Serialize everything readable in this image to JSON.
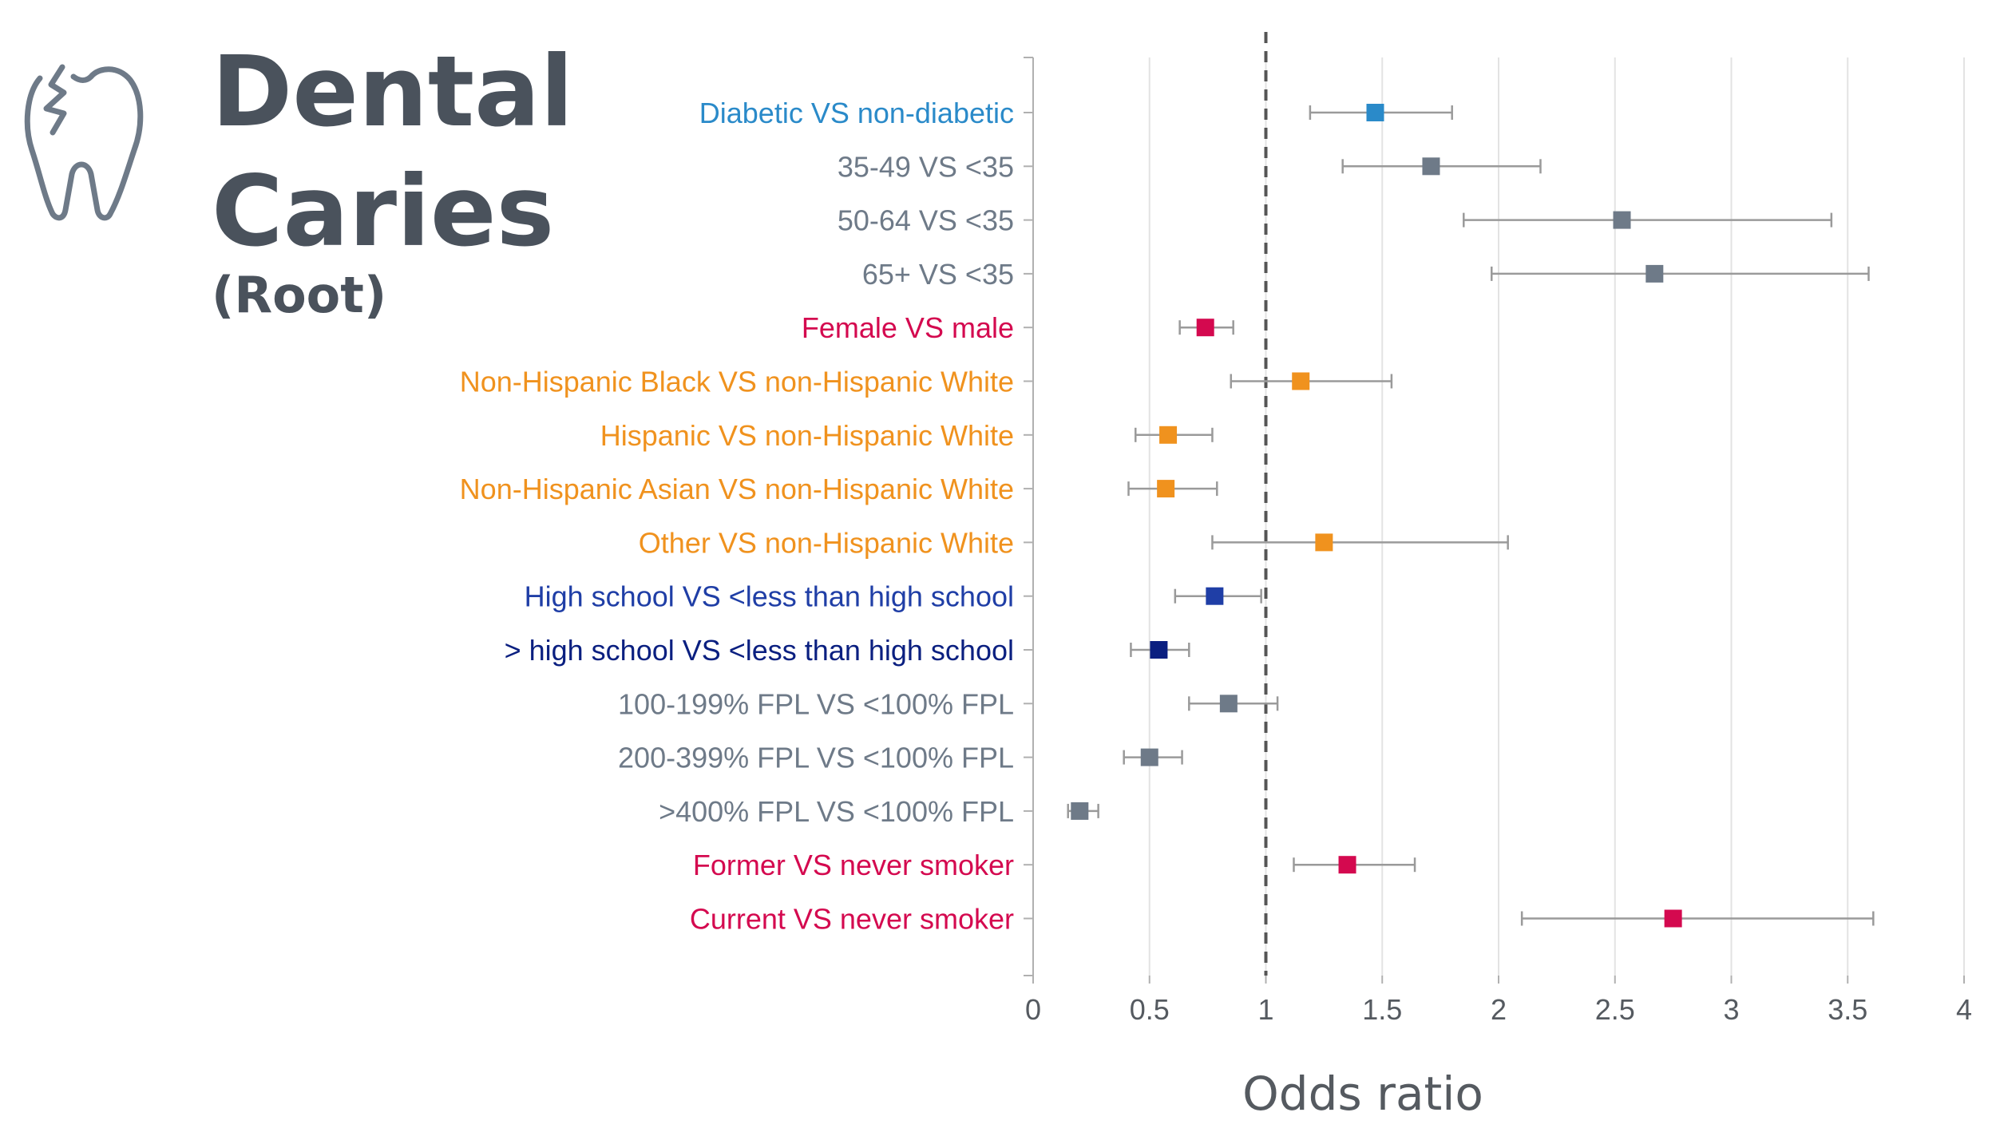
{
  "title": {
    "line1": "Dental",
    "line2": "Caries",
    "line3": "(Root)"
  },
  "icons": {
    "tooth": "broken-tooth-icon"
  },
  "colors": {
    "diabetes": "#2a8ac9",
    "gray": "#6e7a88",
    "sex_smoking": "#d4094f",
    "race": "#f0921e",
    "edu_highschool": "#1f3ea6",
    "edu_beyond": "#0a1f80",
    "reference_line": "#555555",
    "whisker": "#9a9a9a",
    "axis_text": "#555a60",
    "grid": "#e3e3e3"
  },
  "chart_data": {
    "type": "forest",
    "xlabel": "Odds ratio",
    "xlim": [
      0,
      4
    ],
    "xticks": [
      0,
      0.5,
      1,
      1.5,
      2,
      2.5,
      3,
      3.5,
      4
    ],
    "xtick_labels": [
      "0",
      "0.5",
      "1",
      "1.5",
      "2",
      "2.5",
      "3",
      "3.5",
      "4"
    ],
    "reference_line": 1,
    "grid": "vertical",
    "rows": [
      {
        "label": "Diabetic VS non-diabetic",
        "or": 1.47,
        "lo": 1.19,
        "hi": 1.8,
        "color": "#2a8ac9"
      },
      {
        "label": "35-49 VS <35",
        "or": 1.71,
        "lo": 1.33,
        "hi": 2.18,
        "color": "#6e7a88"
      },
      {
        "label": "50-64 VS <35",
        "or": 2.53,
        "lo": 1.85,
        "hi": 3.43,
        "color": "#6e7a88"
      },
      {
        "label": "65+ VS <35",
        "or": 2.67,
        "lo": 1.97,
        "hi": 3.59,
        "color": "#6e7a88"
      },
      {
        "label": "Female VS male",
        "or": 0.74,
        "lo": 0.63,
        "hi": 0.86,
        "color": "#d4094f"
      },
      {
        "label": "Non-Hispanic Black VS non-Hispanic White",
        "or": 1.15,
        "lo": 0.85,
        "hi": 1.54,
        "color": "#f0921e"
      },
      {
        "label": "Hispanic VS non-Hispanic White",
        "or": 0.58,
        "lo": 0.44,
        "hi": 0.77,
        "color": "#f0921e"
      },
      {
        "label": "Non-Hispanic Asian VS non-Hispanic White",
        "or": 0.57,
        "lo": 0.41,
        "hi": 0.79,
        "color": "#f0921e"
      },
      {
        "label": "Other VS non-Hispanic White",
        "or": 1.25,
        "lo": 0.77,
        "hi": 2.04,
        "color": "#f0921e"
      },
      {
        "label": "High school VS <less than high school",
        "or": 0.78,
        "lo": 0.61,
        "hi": 0.98,
        "color": "#1f3ea6"
      },
      {
        "label": "> high school VS <less than high school",
        "or": 0.54,
        "lo": 0.42,
        "hi": 0.67,
        "color": "#0a1f80"
      },
      {
        "label": "100-199% FPL VS <100% FPL",
        "or": 0.84,
        "lo": 0.67,
        "hi": 1.05,
        "color": "#6e7a88"
      },
      {
        "label": "200-399% FPL VS <100% FPL",
        "or": 0.5,
        "lo": 0.39,
        "hi": 0.64,
        "color": "#6e7a88"
      },
      {
        "label": ">400% FPL VS <100% FPL",
        "or": 0.2,
        "lo": 0.15,
        "hi": 0.28,
        "color": "#6e7a88"
      },
      {
        "label": "Former VS never smoker",
        "or": 1.35,
        "lo": 1.12,
        "hi": 1.64,
        "color": "#d4094f"
      },
      {
        "label": "Current VS never smoker",
        "or": 2.75,
        "lo": 2.1,
        "hi": 3.61,
        "color": "#d4094f"
      }
    ]
  }
}
